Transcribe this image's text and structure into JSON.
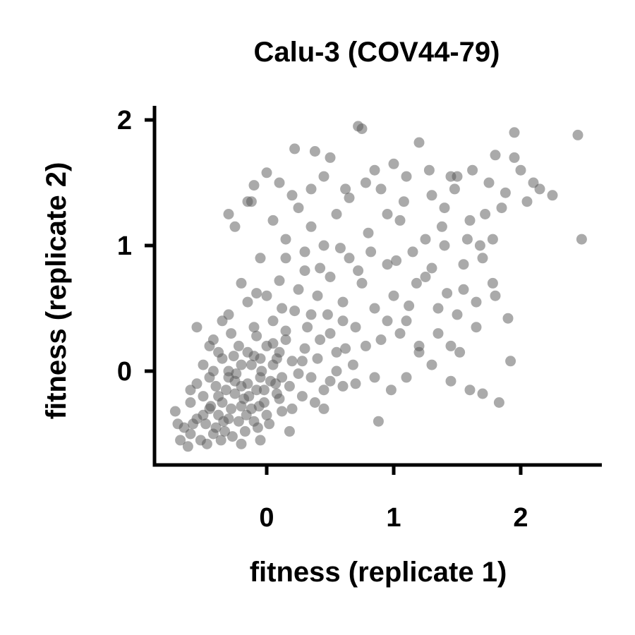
{
  "chart_data": {
    "type": "scatter",
    "title": "Calu-3 (COV44-79)",
    "xlabel": "fitness (replicate 1)",
    "ylabel": "fitness (replicate 2)",
    "xlim": [
      -0.88,
      2.62
    ],
    "ylim": [
      -0.75,
      2.08
    ],
    "xticks": [
      0,
      1,
      2
    ],
    "yticks": [
      0,
      1,
      2
    ],
    "grid": false,
    "legend": "none",
    "point_color": "#555555",
    "point_opacity": 0.5,
    "series": [
      {
        "points": [
          [
            -0.72,
            -0.32
          ],
          [
            -0.65,
            -0.45
          ],
          [
            -0.6,
            -0.5
          ],
          [
            -0.55,
            -0.38
          ],
          [
            -0.52,
            -0.55
          ],
          [
            -0.5,
            -0.2
          ],
          [
            -0.48,
            -0.42
          ],
          [
            -0.45,
            -0.3
          ],
          [
            -0.42,
            -0.5
          ],
          [
            -0.4,
            -0.12
          ],
          [
            -0.38,
            -0.35
          ],
          [
            -0.35,
            -0.25
          ],
          [
            -0.33,
            -0.48
          ],
          [
            -0.3,
            -0.05
          ],
          [
            -0.28,
            -0.3
          ],
          [
            -0.25,
            -0.18
          ],
          [
            -0.22,
            -0.4
          ],
          [
            -0.2,
            0.05
          ],
          [
            -0.18,
            -0.22
          ],
          [
            -0.15,
            -0.1
          ],
          [
            -0.12,
            -0.3
          ],
          [
            -0.1,
            0.12
          ],
          [
            -0.08,
            -0.15
          ],
          [
            -0.05,
            -0.05
          ],
          [
            -0.02,
            -0.25
          ],
          [
            0.0,
            0.2
          ],
          [
            0.03,
            -0.08
          ],
          [
            0.05,
            0.05
          ],
          [
            0.08,
            -0.18
          ],
          [
            0.1,
            0.15
          ],
          [
            0.12,
            -0.05
          ],
          [
            0.15,
            0.25
          ],
          [
            0.18,
            -0.12
          ],
          [
            0.2,
            0.08
          ],
          [
            0.25,
            -0.02
          ],
          [
            0.3,
            0.18
          ],
          [
            -0.6,
            -0.25
          ],
          [
            -0.55,
            -0.1
          ],
          [
            -0.5,
            -0.35
          ],
          [
            -0.45,
            -0.05
          ],
          [
            -0.4,
            -0.45
          ],
          [
            -0.35,
            0.1
          ],
          [
            -0.3,
            -0.38
          ],
          [
            -0.25,
            -0.08
          ],
          [
            -0.2,
            -0.28
          ],
          [
            -0.15,
            0.15
          ],
          [
            -0.1,
            -0.4
          ],
          [
            -0.05,
            0.1
          ],
          [
            0.0,
            -0.35
          ],
          [
            0.05,
            0.22
          ],
          [
            0.1,
            -0.22
          ],
          [
            -0.42,
            0.25
          ],
          [
            -0.28,
            0.3
          ],
          [
            -0.1,
            0.35
          ],
          [
            0.05,
            0.4
          ],
          [
            0.15,
            0.32
          ],
          [
            -0.5,
            0.05
          ],
          [
            -0.38,
            0.15
          ],
          [
            -0.22,
            0.2
          ],
          [
            -0.08,
            0.28
          ],
          [
            -0.68,
            -0.55
          ],
          [
            -0.62,
            -0.6
          ],
          [
            -0.58,
            -0.42
          ],
          [
            -0.47,
            -0.58
          ],
          [
            -0.36,
            -0.55
          ],
          [
            -0.27,
            -0.52
          ],
          [
            -0.17,
            -0.48
          ],
          [
            -0.07,
            -0.45
          ],
          [
            0.02,
            -0.42
          ],
          [
            -0.2,
            -0.58
          ],
          [
            -0.32,
            -0.15
          ],
          [
            -0.24,
            -0.02
          ],
          [
            -0.14,
            -0.2
          ],
          [
            -0.04,
            0.0
          ],
          [
            0.07,
            -0.1
          ],
          [
            0.2,
            -0.3
          ],
          [
            0.28,
            -0.2
          ],
          [
            0.35,
            -0.05
          ],
          [
            0.4,
            0.1
          ],
          [
            0.45,
            -0.15
          ],
          [
            0.5,
            0.3
          ],
          [
            0.55,
            0.0
          ],
          [
            -0.3,
            0.45
          ],
          [
            -0.15,
            0.55
          ],
          [
            0.0,
            0.6
          ],
          [
            0.12,
            0.5
          ],
          [
            0.25,
            0.65
          ],
          [
            0.35,
            0.45
          ],
          [
            0.3,
            0.8
          ],
          [
            0.15,
            0.9
          ],
          [
            0.4,
            0.6
          ],
          [
            0.5,
            0.75
          ],
          [
            0.45,
            1.0
          ],
          [
            0.6,
            0.55
          ],
          [
            0.65,
            0.9
          ],
          [
            0.7,
            0.35
          ],
          [
            0.75,
            0.7
          ],
          [
            0.8,
            1.1
          ],
          [
            0.85,
            0.5
          ],
          [
            0.9,
            0.25
          ],
          [
            0.95,
            0.85
          ],
          [
            1.0,
            0.6
          ],
          [
            1.05,
            1.2
          ],
          [
            1.1,
            0.4
          ],
          [
            1.15,
            0.95
          ],
          [
            1.2,
            0.15
          ],
          [
            1.25,
            0.75
          ],
          [
            1.3,
            1.4
          ],
          [
            1.35,
            0.5
          ],
          [
            1.4,
            1.0
          ],
          [
            1.45,
            0.2
          ],
          [
            1.5,
            1.55
          ],
          [
            1.55,
            0.65
          ],
          [
            1.6,
            1.2
          ],
          [
            1.65,
            0.35
          ],
          [
            1.7,
            0.9
          ],
          [
            1.75,
            1.5
          ],
          [
            1.8,
            0.6
          ],
          [
            1.85,
            1.3
          ],
          [
            1.9,
            0.42
          ],
          [
            1.95,
            1.7
          ],
          [
            2.05,
            1.35
          ],
          [
            2.15,
            1.45
          ],
          [
            2.25,
            1.4
          ],
          [
            2.45,
            1.88
          ],
          [
            2.48,
            1.05
          ],
          [
            1.95,
            1.9
          ],
          [
            1.8,
            1.72
          ],
          [
            1.62,
            1.6
          ],
          [
            1.45,
            1.55
          ],
          [
            1.2,
            1.82
          ],
          [
            1.0,
            1.65
          ],
          [
            0.85,
            1.6
          ],
          [
            0.72,
            1.95
          ],
          [
            0.75,
            1.93
          ],
          [
            0.5,
            1.7
          ],
          [
            0.38,
            1.75
          ],
          [
            0.22,
            1.77
          ],
          [
            0.0,
            1.58
          ],
          [
            -0.1,
            1.48
          ],
          [
            -0.3,
            1.25
          ],
          [
            -0.25,
            1.15
          ],
          [
            -0.12,
            1.35
          ],
          [
            0.05,
            1.2
          ],
          [
            0.15,
            1.05
          ],
          [
            -0.05,
            0.9
          ],
          [
            0.25,
            1.3
          ],
          [
            0.35,
            1.45
          ],
          [
            0.55,
            1.25
          ],
          [
            0.65,
            1.38
          ],
          [
            0.9,
            1.45
          ],
          [
            1.1,
            1.55
          ],
          [
            1.28,
            1.6
          ],
          [
            1.4,
            1.3
          ],
          [
            1.58,
            1.05
          ],
          [
            1.72,
            1.25
          ],
          [
            1.88,
            1.42
          ],
          [
            2.0,
            1.6
          ],
          [
            2.1,
            1.5
          ],
          [
            1.52,
            0.15
          ],
          [
            1.6,
            -0.15
          ],
          [
            1.7,
            -0.18
          ],
          [
            1.83,
            -0.25
          ],
          [
            1.45,
            -0.08
          ],
          [
            1.3,
            0.05
          ],
          [
            1.1,
            -0.05
          ],
          [
            0.98,
            -0.15
          ],
          [
            0.85,
            -0.05
          ],
          [
            0.7,
            -0.1
          ],
          [
            0.88,
            -0.4
          ],
          [
            0.6,
            -0.12
          ],
          [
            0.5,
            -0.08
          ],
          [
            1.2,
            0.2
          ],
          [
            1.35,
            0.3
          ],
          [
            1.5,
            0.45
          ],
          [
            1.65,
            0.55
          ],
          [
            1.78,
            0.7
          ],
          [
            1.92,
            0.08
          ],
          [
            1.05,
            0.3
          ],
          [
            0.95,
            0.4
          ],
          [
            0.78,
            0.2
          ],
          [
            0.68,
            0.05
          ],
          [
            0.55,
            0.15
          ],
          [
            0.42,
            0.25
          ],
          [
            0.32,
            0.35
          ],
          [
            0.22,
            0.48
          ],
          [
            0.1,
            0.72
          ],
          [
            -0.08,
            0.62
          ],
          [
            -0.2,
            0.7
          ],
          [
            0.3,
            0.95
          ],
          [
            0.42,
            0.82
          ],
          [
            0.58,
            0.98
          ],
          [
            0.72,
            0.8
          ],
          [
            0.82,
            0.95
          ],
          [
            1.02,
            0.88
          ],
          [
            1.18,
            0.7
          ],
          [
            1.3,
            0.82
          ],
          [
            1.42,
            0.62
          ],
          [
            1.55,
            0.85
          ],
          [
            1.68,
            1.0
          ],
          [
            1.78,
            1.05
          ],
          [
            0.28,
            0.08
          ],
          [
            0.38,
            -0.25
          ],
          [
            0.18,
            -0.48
          ],
          [
            0.45,
            -0.3
          ],
          [
            -0.05,
            -0.55
          ],
          [
            -0.7,
            -0.42
          ],
          [
            -0.6,
            -0.15
          ],
          [
            -0.45,
            0.2
          ],
          [
            -0.55,
            0.35
          ],
          [
            -0.35,
            0.4
          ],
          [
            -0.42,
            0.0
          ],
          [
            0.48,
            0.45
          ],
          [
            0.6,
            0.4
          ],
          [
            0.62,
            0.18
          ],
          [
            1.12,
            0.52
          ],
          [
            1.25,
            1.05
          ],
          [
            0.35,
            1.15
          ],
          [
            0.2,
            1.4
          ],
          [
            0.1,
            1.5
          ],
          [
            -0.15,
            1.35
          ],
          [
            0.45,
            1.55
          ],
          [
            0.62,
            1.45
          ],
          [
            0.78,
            1.5
          ],
          [
            0.95,
            1.25
          ],
          [
            1.08,
            1.35
          ],
          [
            1.38,
            1.15
          ],
          [
            1.48,
            1.45
          ],
          [
            -0.3,
            0.0
          ],
          [
            -0.12,
            0.05
          ],
          [
            -0.02,
            -0.15
          ],
          [
            0.08,
            0.1
          ],
          [
            -0.38,
            -0.2
          ],
          [
            -0.2,
            -0.12
          ],
          [
            -0.26,
            0.12
          ],
          [
            -0.16,
            -0.35
          ],
          [
            -0.06,
            -0.28
          ],
          [
            0.12,
            -0.32
          ],
          [
            -0.44,
            -0.28
          ],
          [
            -0.34,
            -0.4
          ]
        ]
      }
    ]
  }
}
